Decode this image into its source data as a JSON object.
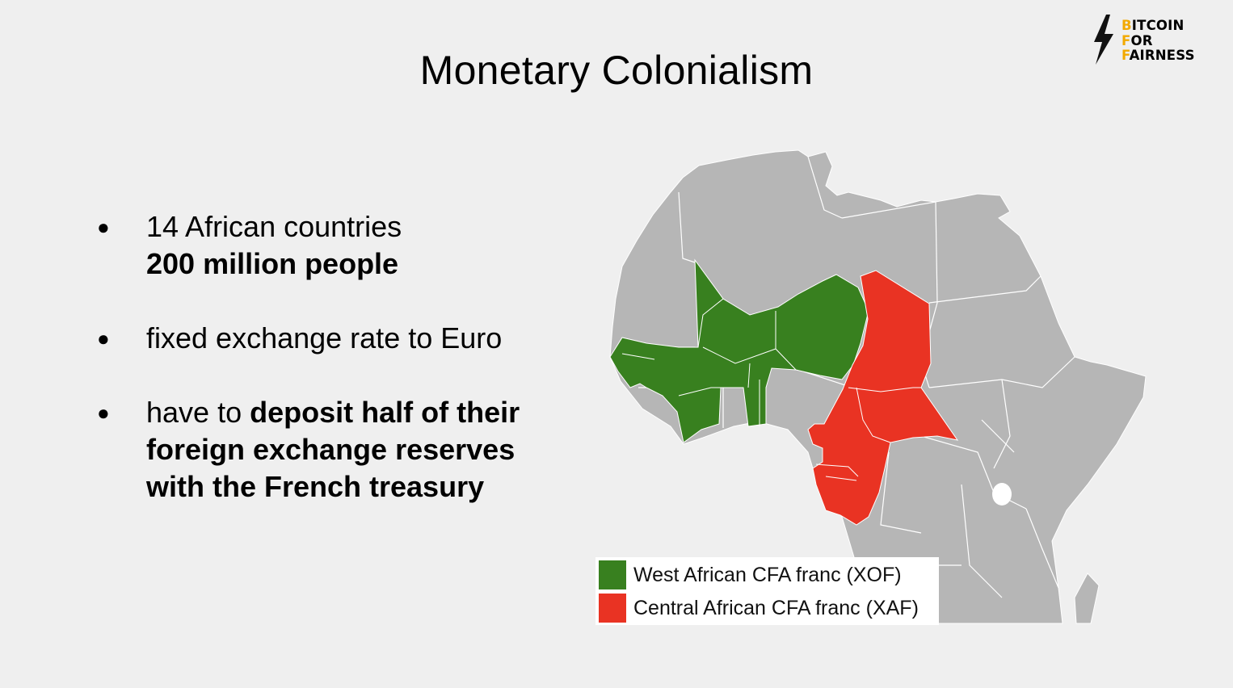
{
  "slide": {
    "title": "Monetary Colonialism"
  },
  "logo": {
    "lines": [
      {
        "initial": "B",
        "rest": "ITCOIN"
      },
      {
        "initial": "F",
        "rest": "OR"
      },
      {
        "initial": "F",
        "rest": "AIRNESS"
      }
    ],
    "icon": "lightning-bolt-icon",
    "accent_color": "#f2a900"
  },
  "bullets": [
    {
      "plain": "14 African countries",
      "bold": "200 million people"
    },
    {
      "plain": "fixed exchange rate to Euro"
    },
    {
      "plain": "have to ",
      "bold_line1": "deposit half of their",
      "bold_line2": "foreign exchange reserves",
      "bold_line3": "with the French treasury"
    }
  ],
  "map": {
    "legend": [
      {
        "label": "West African CFA franc (XOF)",
        "color": "#38801f"
      },
      {
        "label": "Central African CFA franc (XAF)",
        "color": "#e93323"
      }
    ],
    "base_color": "#b6b6b6",
    "border_color": "#ffffff"
  }
}
